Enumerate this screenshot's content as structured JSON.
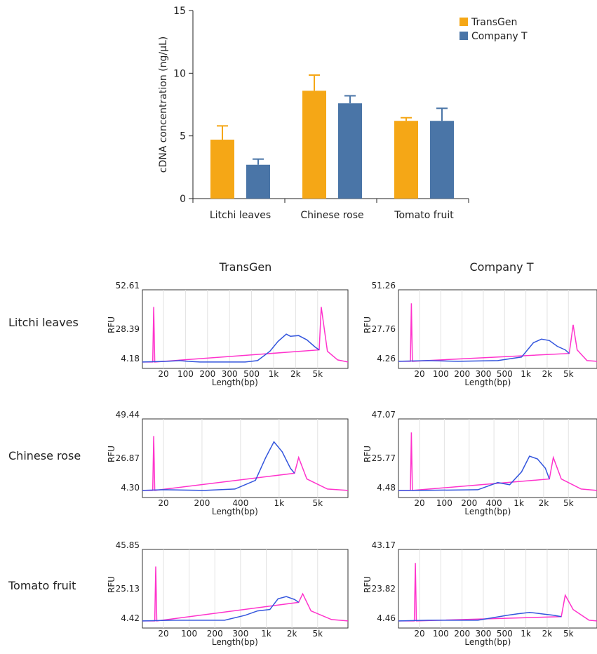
{
  "chart_data": [
    {
      "type": "bar",
      "ylabel": "cDNA concentration (ng/μL)",
      "ylim": [
        0,
        15
      ],
      "yticks": [
        0,
        5,
        10,
        15
      ],
      "categories": [
        "Litchi leaves",
        "Chinese rose",
        "Tomato fruit"
      ],
      "series": [
        {
          "name": "TransGen",
          "values": [
            4.7,
            8.6,
            6.2
          ],
          "errors": [
            1.1,
            1.25,
            0.25
          ],
          "color": "#F5A716"
        },
        {
          "name": "Company T",
          "values": [
            2.7,
            7.6,
            6.2
          ],
          "errors": [
            0.45,
            0.6,
            1.0
          ],
          "color": "#4A75A7"
        }
      ],
      "legend": "top-right",
      "grid": false
    },
    {
      "type": "line",
      "column_titles": [
        "TransGen",
        "Company T"
      ],
      "row_labels": [
        "Litchi leaves",
        "Chinese rose",
        "Tomato fruit"
      ],
      "ylabel": "RFU",
      "xlabel": "Length(bp)",
      "panels": [
        {
          "id": "transgen-litchi",
          "yticks": [
            "52.61",
            "28.39",
            "4.18"
          ],
          "xticks": [
            "20",
            "100",
            "200",
            "300",
            "500",
            "1k",
            "2k",
            "5k"
          ],
          "blue": [
            [
              0,
              0.03
            ],
            [
              0.12,
              0.04
            ],
            [
              0.18,
              0.05
            ],
            [
              0.22,
              0.04
            ],
            [
              0.28,
              0.03
            ],
            [
              0.5,
              0.03
            ],
            [
              0.56,
              0.05
            ],
            [
              0.62,
              0.18
            ],
            [
              0.66,
              0.32
            ],
            [
              0.7,
              0.42
            ],
            [
              0.72,
              0.39
            ],
            [
              0.76,
              0.4
            ],
            [
              0.8,
              0.34
            ],
            [
              0.84,
              0.24
            ],
            [
              0.86,
              0.2
            ]
          ],
          "pink": [
            [
              0.0,
              0.03
            ],
            [
              0.05,
              0.03
            ],
            [
              0.055,
              0.8
            ],
            [
              0.06,
              0.03
            ],
            [
              0.86,
              0.2
            ],
            [
              0.87,
              0.8
            ],
            [
              0.9,
              0.18
            ],
            [
              0.95,
              0.06
            ],
            [
              1.0,
              0.03
            ]
          ]
        },
        {
          "id": "companyt-litchi",
          "yticks": [
            "51.26",
            "27.76",
            "4.26"
          ],
          "xticks": [
            "20",
            "100",
            "200",
            "300",
            "500",
            "1k",
            "2k",
            "5k"
          ],
          "blue": [
            [
              0,
              0.04
            ],
            [
              0.15,
              0.05
            ],
            [
              0.3,
              0.04
            ],
            [
              0.5,
              0.05
            ],
            [
              0.62,
              0.1
            ],
            [
              0.68,
              0.3
            ],
            [
              0.72,
              0.35
            ],
            [
              0.76,
              0.33
            ],
            [
              0.8,
              0.25
            ],
            [
              0.84,
              0.2
            ],
            [
              0.86,
              0.15
            ]
          ],
          "pink": [
            [
              0.0,
              0.04
            ],
            [
              0.06,
              0.04
            ],
            [
              0.065,
              0.85
            ],
            [
              0.07,
              0.04
            ],
            [
              0.86,
              0.15
            ],
            [
              0.88,
              0.55
            ],
            [
              0.9,
              0.2
            ],
            [
              0.95,
              0.05
            ],
            [
              1.0,
              0.04
            ]
          ]
        },
        {
          "id": "transgen-rose",
          "yticks": [
            "49.44",
            "26.87",
            "4.30"
          ],
          "xticks": [
            "20",
            "200",
            "400",
            "1k",
            "5k"
          ],
          "blue": [
            [
              0,
              0.04
            ],
            [
              0.1,
              0.05
            ],
            [
              0.3,
              0.04
            ],
            [
              0.45,
              0.06
            ],
            [
              0.55,
              0.18
            ],
            [
              0.6,
              0.5
            ],
            [
              0.64,
              0.72
            ],
            [
              0.68,
              0.58
            ],
            [
              0.72,
              0.35
            ],
            [
              0.74,
              0.28
            ]
          ],
          "pink": [
            [
              0.0,
              0.04
            ],
            [
              0.05,
              0.04
            ],
            [
              0.055,
              0.8
            ],
            [
              0.06,
              0.04
            ],
            [
              0.74,
              0.28
            ],
            [
              0.76,
              0.5
            ],
            [
              0.8,
              0.2
            ],
            [
              0.9,
              0.06
            ],
            [
              1.0,
              0.04
            ]
          ]
        },
        {
          "id": "companyt-rose",
          "yticks": [
            "47.07",
            "25.77",
            "4.48"
          ],
          "xticks": [
            "20",
            "100",
            "200",
            "400",
            "1k",
            "2k",
            "5k"
          ],
          "blue": [
            [
              0,
              0.04
            ],
            [
              0.1,
              0.04
            ],
            [
              0.4,
              0.05
            ],
            [
              0.5,
              0.15
            ],
            [
              0.56,
              0.12
            ],
            [
              0.62,
              0.3
            ],
            [
              0.66,
              0.52
            ],
            [
              0.7,
              0.48
            ],
            [
              0.74,
              0.35
            ],
            [
              0.76,
              0.2
            ]
          ],
          "pink": [
            [
              0.0,
              0.04
            ],
            [
              0.06,
              0.04
            ],
            [
              0.065,
              0.85
            ],
            [
              0.07,
              0.04
            ],
            [
              0.76,
              0.2
            ],
            [
              0.78,
              0.5
            ],
            [
              0.82,
              0.2
            ],
            [
              0.92,
              0.06
            ],
            [
              1.0,
              0.04
            ]
          ]
        },
        {
          "id": "transgen-tomato",
          "yticks": [
            "45.85",
            "25.13",
            "4.42"
          ],
          "xticks": [
            "20",
            "100",
            "200",
            "300",
            "1k",
            "2k",
            "5k"
          ],
          "blue": [
            [
              0,
              0.04
            ],
            [
              0.15,
              0.05
            ],
            [
              0.4,
              0.05
            ],
            [
              0.5,
              0.12
            ],
            [
              0.56,
              0.18
            ],
            [
              0.62,
              0.2
            ],
            [
              0.66,
              0.35
            ],
            [
              0.7,
              0.38
            ],
            [
              0.74,
              0.34
            ],
            [
              0.76,
              0.3
            ]
          ],
          "pink": [
            [
              0.0,
              0.04
            ],
            [
              0.06,
              0.04
            ],
            [
              0.065,
              0.8
            ],
            [
              0.07,
              0.04
            ],
            [
              0.76,
              0.3
            ],
            [
              0.78,
              0.42
            ],
            [
              0.82,
              0.18
            ],
            [
              0.92,
              0.06
            ],
            [
              1.0,
              0.04
            ]
          ]
        },
        {
          "id": "companyt-tomato",
          "yticks": [
            "43.17",
            "23.82",
            "4.46"
          ],
          "xticks": [
            "20",
            "100",
            "200",
            "300",
            "500",
            "1k",
            "2k",
            "5k"
          ],
          "blue": [
            [
              0,
              0.04
            ],
            [
              0.15,
              0.05
            ],
            [
              0.4,
              0.05
            ],
            [
              0.55,
              0.12
            ],
            [
              0.6,
              0.14
            ],
            [
              0.66,
              0.16
            ],
            [
              0.72,
              0.14
            ],
            [
              0.78,
              0.12
            ],
            [
              0.82,
              0.1
            ]
          ],
          "pink": [
            [
              0.0,
              0.04
            ],
            [
              0.08,
              0.04
            ],
            [
              0.085,
              0.85
            ],
            [
              0.09,
              0.04
            ],
            [
              0.82,
              0.1
            ],
            [
              0.84,
              0.4
            ],
            [
              0.88,
              0.2
            ],
            [
              0.96,
              0.05
            ],
            [
              1.0,
              0.04
            ]
          ]
        }
      ]
    }
  ]
}
